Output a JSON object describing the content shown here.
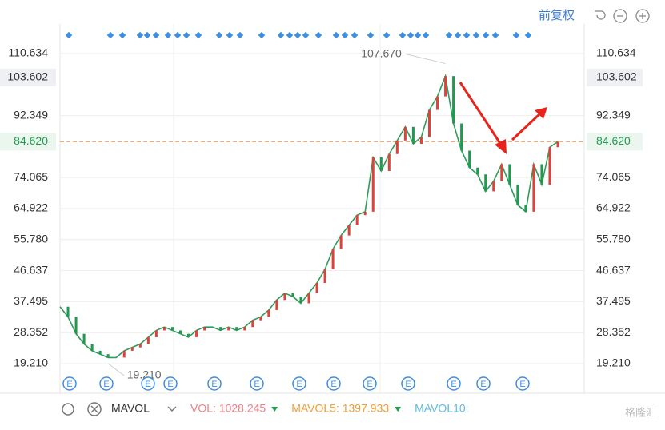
{
  "chart_data": {
    "type": "line",
    "adjust_mode": "前复权",
    "categories": [
      null,
      null,
      null,
      null,
      null,
      null,
      null,
      null,
      null,
      null,
      null,
      null,
      null,
      null,
      null,
      null,
      null,
      null,
      null,
      null,
      null,
      null,
      null,
      null,
      null,
      null,
      null,
      null,
      null,
      null,
      null,
      null,
      null,
      null,
      null,
      null,
      null,
      null,
      null,
      null,
      null,
      null,
      null,
      null,
      null,
      null,
      null,
      null,
      null,
      null,
      null,
      null,
      null,
      null,
      null,
      null,
      null,
      null,
      null,
      null,
      null,
      null,
      null
    ],
    "values": [
      36,
      33,
      28,
      25,
      23,
      22,
      21,
      21,
      23,
      24,
      25,
      27,
      29,
      30,
      29,
      28,
      27,
      29,
      30,
      30,
      29,
      30,
      29,
      30,
      32,
      33,
      35,
      38,
      40,
      39,
      37,
      40,
      43,
      47,
      53,
      57,
      60,
      63,
      64,
      80,
      76,
      81,
      85,
      89,
      84,
      86,
      94,
      98,
      104,
      90,
      82,
      77,
      75,
      70,
      73,
      78,
      72,
      66,
      64,
      78,
      72,
      83,
      84.62
    ],
    "color": "#2e9d5a",
    "ylim": [
      10.96,
      118.17
    ],
    "yticks": [
      {
        "value": 19.21,
        "label": "19.210"
      },
      {
        "value": 28.352,
        "label": "28.352"
      },
      {
        "value": 37.495,
        "label": "37.495"
      },
      {
        "value": 46.637,
        "label": "46.637"
      },
      {
        "value": 55.78,
        "label": "55.780"
      },
      {
        "value": 64.922,
        "label": "64.922"
      },
      {
        "value": 74.065,
        "label": "74.065"
      },
      {
        "value": 92.349,
        "label": "92.349"
      },
      {
        "value": 110.634,
        "label": "110.634"
      }
    ],
    "grid": true,
    "current_price": {
      "value": 84.62,
      "label": "84.620"
    },
    "highlight_price": {
      "value": 103.602,
      "label": "103.602"
    },
    "annotations": [
      {
        "value": 107.67,
        "label": "107.670"
      },
      {
        "value": 19.21,
        "label": "19.210"
      }
    ],
    "toolbar": {
      "indicator": "MAVOL",
      "items": [
        {
          "label": "VOL: 1028.245",
          "color": "#f07f86"
        },
        {
          "label": "MAVOL5: 1397.933",
          "color": "#f39c35"
        },
        {
          "label": "MAVOL10:",
          "color": "#5bbce4"
        }
      ]
    },
    "watermark": "格隆汇"
  }
}
